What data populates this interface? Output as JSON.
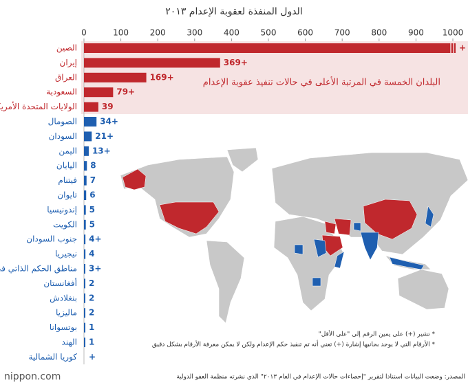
{
  "chart_data": {
    "type": "bar",
    "orientation": "horizontal",
    "title": "الدول المنفذة لعقوبة الإعدام ٢٠١٣",
    "categories": [
      "الصين",
      "إيران",
      "العراق",
      "السعودية",
      "الولايات المتحدة الأمريكية",
      "الصومال",
      "السودان",
      "اليمن",
      "اليابان",
      "فيتنام",
      "تايوان",
      "إندونيسيا",
      "الكويت",
      "جنوب السودان",
      "نيجيريا",
      "مناطق الحكم الذاتي في فلسطين",
      "أفغانستان",
      "بنغلادش",
      "ماليزيا",
      "بوتسوانا",
      "الهند",
      "كوريا الشمالية"
    ],
    "values": [
      1000,
      369,
      169,
      79,
      39,
      34,
      21,
      13,
      8,
      7,
      6,
      5,
      5,
      4,
      4,
      3,
      2,
      2,
      2,
      1,
      1,
      null
    ],
    "value_labels": [
      "+",
      "369+",
      "169+",
      "79+",
      "39",
      "34+",
      "21+",
      "13+",
      "8",
      "7",
      "6",
      "5",
      "5",
      "4+",
      "4",
      "3+",
      "2",
      "2",
      "2",
      "1",
      "1",
      "+"
    ],
    "colors": [
      "#c0282d",
      "#c0282d",
      "#c0282d",
      "#c0282d",
      "#c0282d",
      "#1f5fb0",
      "#1f5fb0",
      "#1f5fb0",
      "#1f5fb0",
      "#1f5fb0",
      "#1f5fb0",
      "#1f5fb0",
      "#1f5fb0",
      "#1f5fb0",
      "#1f5fb0",
      "#1f5fb0",
      "#1f5fb0",
      "#1f5fb0",
      "#1f5fb0",
      "#1f5fb0",
      "#1f5fb0",
      "#1f5fb0"
    ],
    "xlim": [
      0,
      1000
    ],
    "xticks": [
      0,
      100,
      200,
      300,
      400,
      500,
      600,
      700,
      800,
      900,
      1000
    ],
    "annotation": "البلدان الخمسة في المرتبة الأعلى في حالات تنفيذ عقوبة الإعدام",
    "notes": [
      "* تشير (+) على يمين الرقم إلى \"على الأقل\"",
      "* الأرقام التي لا يوجد بجانبها إشارة (+) تعني أنه تم تنفيذ حكم الإعدام ولكن لا يمكن معرفة الأرقام بشكل دقيق"
    ],
    "source": "المصدر: وضعت البيانات استنادا لتقرير \"إحصاءات حالات الإعدام في العام ٢٠١٣\" الذي نشرته منظمة العفو الدولية",
    "logo": "nippon.com"
  }
}
